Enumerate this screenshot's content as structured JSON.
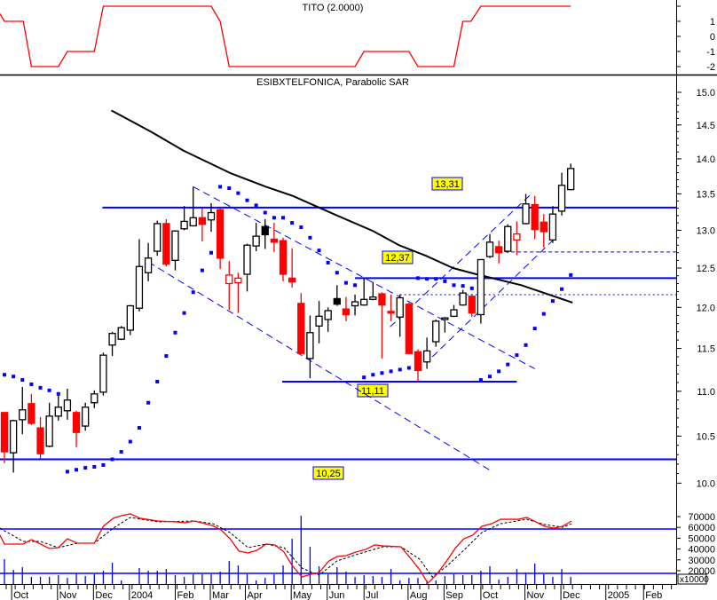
{
  "colors": {
    "up_fill": "#ffffff",
    "down": "#ff0000",
    "outline": "#000000",
    "levels": "#0000ff",
    "sar": "#0000ff",
    "ma": "#000000",
    "tito": "#ff0000",
    "osc": "#ff0000",
    "osc_signal": "#000000",
    "label_bg": "#ffff00",
    "volume": "#0000ff"
  },
  "chart_data": [
    {
      "type": "line",
      "title": "TITO (2.0000)",
      "yticks": [
        {
          "v": 1,
          "label": "1"
        },
        {
          "v": 0,
          "label": "0"
        },
        {
          "v": -1,
          "label": "-1"
        },
        {
          "v": -2,
          "label": "-2"
        }
      ],
      "ylim": [
        -2,
        2
      ],
      "series": [
        {
          "name": "TITO",
          "points": [
            [
              -0.5,
              1.5
            ],
            [
              0,
              1
            ],
            [
              2.1,
              1
            ],
            [
              3,
              -2
            ],
            [
              6,
              -2
            ],
            [
              7,
              -1
            ],
            [
              10,
              -1
            ],
            [
              11,
              2
            ],
            [
              23,
              2
            ],
            [
              24,
              1
            ],
            [
              25,
              -2
            ],
            [
              39,
              -2
            ],
            [
              40,
              -1
            ],
            [
              45,
              -1
            ],
            [
              46,
              -2
            ],
            [
              50,
              -2
            ],
            [
              51,
              1
            ],
            [
              51.9,
              1
            ],
            [
              53,
              2
            ],
            [
              63,
              2
            ]
          ]
        }
      ]
    },
    {
      "type": "candlestick",
      "title": "ESIBXTELFONICA, Parabolic SAR",
      "scale": "log",
      "ylim": [
        10.0,
        15.0
      ],
      "yticks": [
        "15.0",
        "14.5",
        "14.0",
        "13.5",
        "13.0",
        "12.5",
        "12.0",
        "11.5",
        "11.0",
        "10.5",
        "10.0"
      ],
      "ohlc": [
        [
          10.76,
          10.76,
          10.21,
          10.33
        ],
        [
          10.32,
          10.68,
          10.11,
          10.67
        ],
        [
          10.68,
          11.05,
          10.52,
          10.79
        ],
        [
          10.86,
          10.97,
          10.62,
          10.64
        ],
        [
          10.59,
          10.71,
          10.26,
          10.31
        ],
        [
          10.39,
          10.87,
          10.38,
          10.72
        ],
        [
          10.72,
          10.98,
          10.67,
          10.82
        ],
        [
          10.78,
          11.03,
          10.68,
          10.9
        ],
        [
          10.76,
          10.78,
          10.38,
          10.54
        ],
        [
          10.61,
          10.87,
          10.56,
          10.82
        ],
        [
          10.87,
          11.01,
          10.81,
          10.97
        ],
        [
          10.99,
          11.45,
          10.95,
          11.42
        ],
        [
          11.54,
          11.7,
          11.41,
          11.68
        ],
        [
          11.61,
          11.77,
          11.6,
          11.75
        ],
        [
          11.72,
          12.03,
          11.66,
          12.02
        ],
        [
          11.99,
          12.88,
          11.95,
          12.52
        ],
        [
          12.44,
          12.83,
          12.33,
          12.63
        ],
        [
          12.72,
          13.13,
          12.66,
          13.09
        ],
        [
          13.09,
          13.15,
          12.52,
          12.55
        ],
        [
          12.6,
          13.0,
          12.47,
          12.99
        ],
        [
          13.02,
          13.33,
          13.0,
          13.12
        ],
        [
          13.06,
          13.6,
          13.05,
          13.17
        ],
        [
          13.17,
          13.3,
          12.85,
          13.08
        ],
        [
          13.14,
          13.37,
          12.98,
          13.24
        ],
        [
          13.28,
          13.3,
          12.49,
          12.63
        ],
        [
          12.3,
          12.59,
          11.97,
          12.41
        ],
        [
          12.31,
          12.44,
          11.93,
          12.37
        ],
        [
          12.42,
          12.82,
          12.2,
          12.8
        ],
        [
          12.79,
          13.1,
          12.72,
          12.92
        ],
        [
          13.05,
          13.15,
          12.75,
          12.94
        ],
        [
          12.88,
          13.1,
          12.71,
          12.84
        ],
        [
          12.86,
          12.9,
          12.33,
          12.42
        ],
        [
          12.37,
          12.76,
          12.25,
          12.32
        ],
        [
          12.05,
          12.18,
          11.44,
          11.44
        ],
        [
          11.38,
          11.9,
          11.15,
          11.69
        ],
        [
          11.77,
          12.08,
          11.56,
          11.89
        ],
        [
          11.85,
          12.0,
          11.7,
          11.96
        ],
        [
          12.11,
          12.28,
          12.02,
          12.04
        ],
        [
          11.98,
          12.13,
          11.83,
          11.91
        ],
        [
          12.02,
          12.16,
          11.9,
          12.07
        ],
        [
          12.03,
          12.37,
          12.02,
          12.1
        ],
        [
          12.1,
          12.32,
          12.09,
          12.13
        ],
        [
          12.17,
          12.19,
          11.38,
          12.03
        ],
        [
          11.95,
          12.16,
          11.83,
          11.93
        ],
        [
          11.88,
          12.16,
          11.64,
          12.12
        ],
        [
          12.04,
          12.06,
          11.44,
          11.44
        ],
        [
          11.46,
          11.49,
          11.11,
          11.24
        ],
        [
          11.34,
          11.63,
          11.26,
          11.47
        ],
        [
          11.58,
          11.85,
          11.52,
          11.83
        ],
        [
          11.85,
          11.88,
          11.69,
          11.87
        ],
        [
          11.89,
          12.03,
          11.88,
          11.97
        ],
        [
          12.03,
          12.22,
          12.02,
          12.18
        ],
        [
          12.14,
          12.17,
          11.88,
          11.93
        ],
        [
          11.91,
          12.61,
          11.8,
          12.61
        ],
        [
          12.65,
          12.95,
          12.63,
          12.84
        ],
        [
          12.78,
          12.86,
          12.56,
          12.7
        ],
        [
          12.72,
          13.08,
          12.7,
          13.05
        ],
        [
          12.87,
          13.12,
          12.67,
          12.95
        ],
        [
          13.09,
          13.5,
          13.08,
          13.36
        ],
        [
          13.35,
          13.47,
          12.88,
          13.01
        ],
        [
          13.11,
          13.22,
          12.77,
          12.98
        ],
        [
          12.87,
          13.33,
          12.83,
          13.22
        ],
        [
          13.26,
          13.8,
          13.2,
          13.62
        ],
        [
          13.56,
          13.93,
          13.55,
          13.86
        ]
      ],
      "sar": [
        11.19,
        11.17,
        11.13,
        11.08,
        11.04,
        11.01,
        10.97,
        10.12,
        10.14,
        10.16,
        10.17,
        10.19,
        10.25,
        10.33,
        10.44,
        10.59,
        10.87,
        11.11,
        11.41,
        11.69,
        11.93,
        12.19,
        12.47,
        12.7,
        13.6,
        13.58,
        13.51,
        13.41,
        13.34,
        13.24,
        13.17,
        13.17,
        13.1,
        13.04,
        12.9,
        12.73,
        12.57,
        12.44,
        12.31,
        12.28,
        11.16,
        11.19,
        11.21,
        11.23,
        11.25,
        11.27,
        12.37,
        12.36,
        12.36,
        12.33,
        12.28,
        12.27,
        12.24,
        11.13,
        11.17,
        11.23,
        11.31,
        11.42,
        11.54,
        11.74,
        11.92,
        12.08,
        12.23,
        12.41
      ],
      "moving_average": [
        [
          11.9,
          14.72
        ],
        [
          16.3,
          14.4
        ],
        [
          19.9,
          14.12
        ],
        [
          25.2,
          13.79
        ],
        [
          29.1,
          13.6
        ],
        [
          32.1,
          13.47
        ],
        [
          37.0,
          13.2
        ],
        [
          41.0,
          12.99
        ],
        [
          43.9,
          12.8
        ],
        [
          46.9,
          12.66
        ],
        [
          49.9,
          12.5
        ],
        [
          52.5,
          12.42
        ],
        [
          57.5,
          12.28
        ],
        [
          63.2,
          12.06
        ]
      ],
      "levels": [
        {
          "value": 13.31,
          "label": "13,31",
          "from": 10.9,
          "to": null,
          "style": "solid"
        },
        {
          "value": 12.37,
          "label": "12,37",
          "from": 39,
          "to": null,
          "style": "solid"
        },
        {
          "value": 11.11,
          "label": "11,11",
          "from": 30.9,
          "to": 57,
          "style": "solid"
        },
        {
          "value": 10.25,
          "label": "10,25",
          "from": -0.5,
          "to": null,
          "style": "solid"
        },
        {
          "value": 12.71,
          "label": "",
          "from": 55,
          "to": null,
          "style": "dashed"
        },
        {
          "value": 12.16,
          "label": "",
          "from": 44,
          "to": null,
          "style": "dotted"
        }
      ],
      "trendlines": [
        [
          [
            21,
            13.6
          ],
          [
            59,
            11.26
          ]
        ],
        [
          [
            16,
            12.58
          ],
          [
            54.1,
            10.13
          ]
        ],
        [
          [
            42.9,
            11.76
          ],
          [
            58.7,
            13.51
          ]
        ],
        [
          [
            47.6,
            11.4
          ],
          [
            61.4,
            12.91
          ]
        ]
      ]
    },
    {
      "type": "bar+line",
      "yticks": [
        "70000",
        "60000",
        "50000",
        "40000",
        "30000",
        "20000"
      ],
      "unit_label": "x10000",
      "hlines": [
        58500,
        17500
      ],
      "volume": [
        23000,
        13100,
        15600,
        6600,
        6600,
        6600,
        8200,
        5700,
        9800,
        7400,
        9000,
        12300,
        19700,
        3300,
        0,
        14800,
        12300,
        12300,
        13900,
        8200,
        6600,
        9000,
        9000,
        9000,
        11500,
        21300,
        17200,
        9000,
        3300,
        5700,
        9000,
        17200,
        41800,
        63100,
        34400,
        16400,
        9000,
        15600,
        11500,
        6600,
        8200,
        7400,
        6600,
        13900,
        3300,
        5700,
        5700,
        3300,
        3300,
        7400,
        9000,
        8200,
        8200,
        12300,
        16400,
        4100,
        6600,
        13900,
        10700,
        18900,
        9000,
        6600,
        13900,
        6600
      ],
      "oscillator": [
        [
          -0.5,
          52800
        ],
        [
          0,
          44600
        ],
        [
          2.1,
          44600
        ],
        [
          3,
          48700
        ],
        [
          4,
          44600
        ],
        [
          5,
          40500
        ],
        [
          6,
          41300
        ],
        [
          7,
          49500
        ],
        [
          8.1,
          45400
        ],
        [
          10,
          45400
        ],
        [
          11,
          61000
        ],
        [
          12.1,
          68400
        ],
        [
          13,
          70800
        ],
        [
          14,
          72500
        ],
        [
          15.1,
          68400
        ],
        [
          17.1,
          65900
        ],
        [
          19.1,
          65100
        ],
        [
          20.1,
          64300
        ],
        [
          21.1,
          65900
        ],
        [
          23.1,
          61800
        ],
        [
          24.1,
          57700
        ],
        [
          25.1,
          49500
        ],
        [
          26.1,
          38000
        ],
        [
          27.1,
          36400
        ],
        [
          28.1,
          38800
        ],
        [
          29.1,
          44600
        ],
        [
          30.1,
          43800
        ],
        [
          31.1,
          37200
        ],
        [
          32,
          24900
        ],
        [
          33.1,
          14200
        ],
        [
          34.1,
          16700
        ],
        [
          35,
          18300
        ],
        [
          36.1,
          29000
        ],
        [
          37,
          33100
        ],
        [
          38,
          33900
        ],
        [
          39.1,
          37200
        ],
        [
          40.2,
          39700
        ],
        [
          41.2,
          43800
        ],
        [
          42.1,
          42900
        ],
        [
          44.1,
          42100
        ],
        [
          45.1,
          32300
        ],
        [
          46.2,
          20800
        ],
        [
          47.1,
          8500
        ],
        [
          48.1,
          16700
        ],
        [
          49.2,
          29000
        ],
        [
          50.2,
          41300
        ],
        [
          51.1,
          49500
        ],
        [
          52.1,
          52800
        ],
        [
          53.1,
          61000
        ],
        [
          54.2,
          63400
        ],
        [
          55.2,
          67500
        ],
        [
          57.2,
          67500
        ],
        [
          58.1,
          69200
        ],
        [
          59.1,
          65100
        ],
        [
          60.1,
          61000
        ],
        [
          61.1,
          59300
        ],
        [
          62.1,
          61000
        ],
        [
          63.1,
          65900
        ]
      ],
      "signal": [
        [
          -0.5,
          59300
        ],
        [
          2.1,
          47000
        ],
        [
          4,
          47000
        ],
        [
          6,
          41300
        ],
        [
          8.1,
          45400
        ],
        [
          10,
          45400
        ],
        [
          12.1,
          59300
        ],
        [
          14,
          69200
        ],
        [
          17.1,
          65100
        ],
        [
          21.1,
          65900
        ],
        [
          23.2,
          63400
        ],
        [
          25.1,
          55200
        ],
        [
          27.1,
          41300
        ],
        [
          29.1,
          44600
        ],
        [
          31.1,
          41300
        ],
        [
          33.1,
          22400
        ],
        [
          35,
          15800
        ],
        [
          37,
          29000
        ],
        [
          39.1,
          34700
        ],
        [
          42.1,
          42100
        ],
        [
          44.1,
          42100
        ],
        [
          46.2,
          30600
        ],
        [
          47.6,
          14200
        ],
        [
          49.2,
          24100
        ],
        [
          51.1,
          38800
        ],
        [
          53.1,
          55200
        ],
        [
          55.2,
          63400
        ],
        [
          58.1,
          67500
        ],
        [
          60.1,
          62600
        ],
        [
          62.1,
          60200
        ],
        [
          63.1,
          63400
        ]
      ]
    }
  ],
  "x_axis": {
    "months": [
      {
        "i": 1.0,
        "label": "Oct"
      },
      {
        "i": 6.1,
        "label": "Nov"
      },
      {
        "i": 10.1,
        "label": "Dec"
      },
      {
        "i": 14.1,
        "label": "2004"
      },
      {
        "i": 19.2,
        "label": "Feb"
      },
      {
        "i": 23.1,
        "label": "Mar"
      },
      {
        "i": 27.0,
        "label": "Apr"
      },
      {
        "i": 32.1,
        "label": "May"
      },
      {
        "i": 36.1,
        "label": "Jun"
      },
      {
        "i": 40.2,
        "label": "Jul"
      },
      {
        "i": 45.1,
        "label": "Aug"
      },
      {
        "i": 49.1,
        "label": "Sep"
      },
      {
        "i": 53.2,
        "label": "Oct"
      },
      {
        "i": 58.1,
        "label": "Nov"
      },
      {
        "i": 62.1,
        "label": "Dec"
      },
      {
        "i": 67.1,
        "label": "2005"
      },
      {
        "i": 71.3,
        "label": "Feb"
      }
    ]
  }
}
